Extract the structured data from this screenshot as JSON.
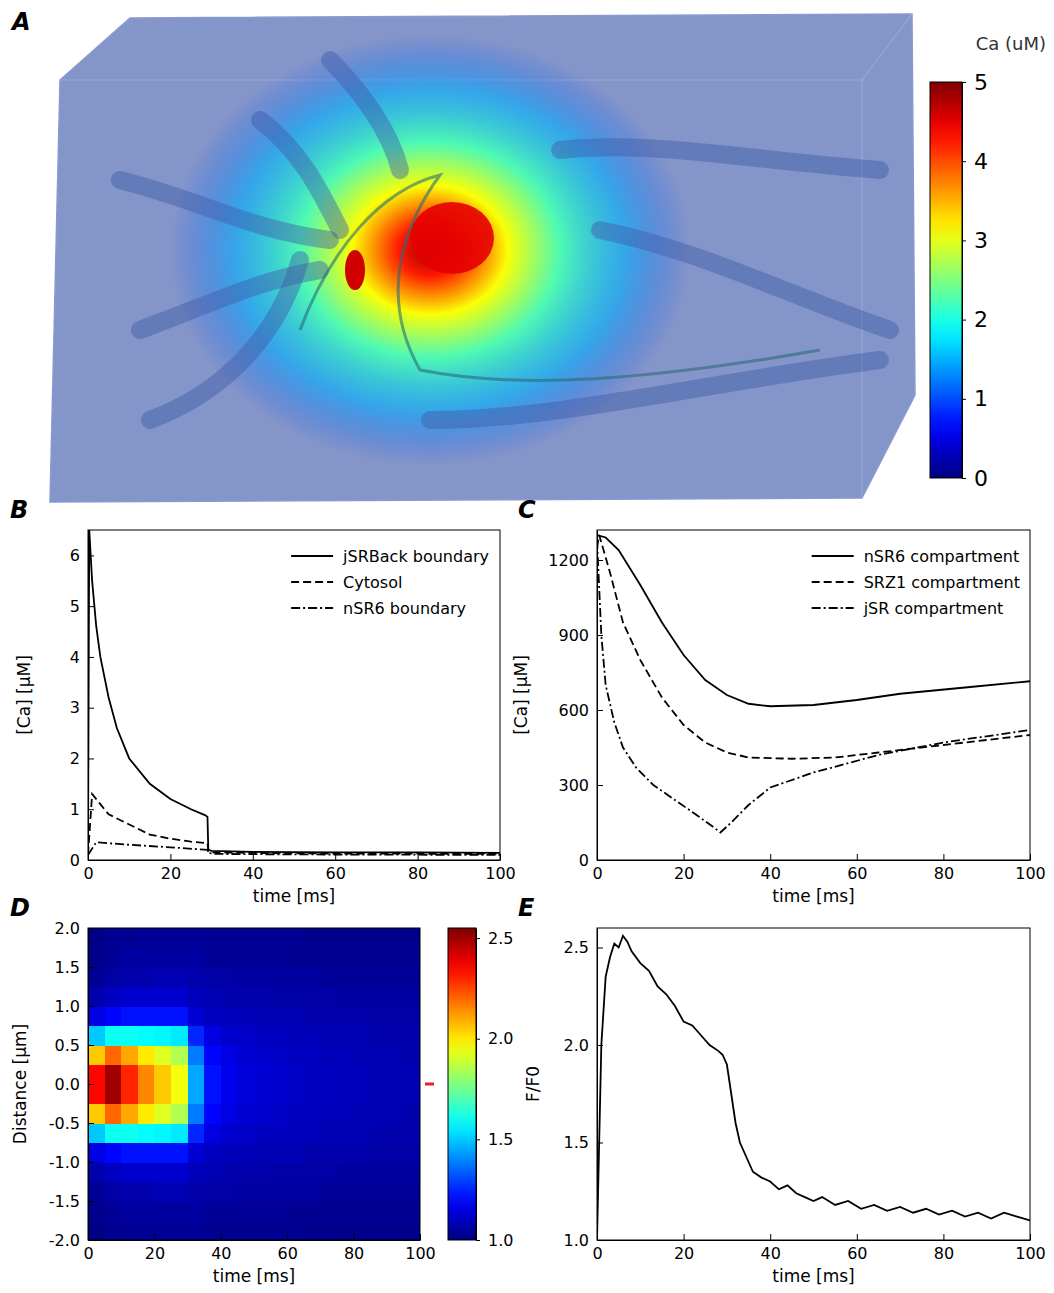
{
  "chart_data": [
    {
      "panel": "A",
      "type": "volume",
      "colorbar": {
        "title": "Ca (uM)",
        "range": [
          0,
          5
        ],
        "ticks": [
          0,
          1,
          2,
          3,
          4,
          5
        ]
      }
    },
    {
      "panel": "B",
      "type": "line",
      "xlabel": "time [ms]",
      "ylabel": "[Ca] [μM]",
      "xlim": [
        0,
        100
      ],
      "xticks": [
        0,
        20,
        40,
        60,
        80,
        100
      ],
      "ylim": [
        0,
        6.5
      ],
      "yticks": [
        0,
        1,
        2,
        3,
        4,
        5,
        6
      ],
      "legend": "top-right",
      "series": [
        {
          "name": "jSRBack boundary",
          "color": "#000000",
          "line_style": "solid",
          "x": [
            0,
            0.3,
            1,
            2,
            3,
            5,
            7,
            10,
            15,
            20,
            25,
            28.5,
            29,
            29.2,
            30,
            40,
            60,
            80,
            100
          ],
          "values": [
            0.1,
            6.5,
            5.5,
            4.6,
            4.0,
            3.2,
            2.6,
            2.0,
            1.5,
            1.2,
            1.0,
            0.88,
            0.85,
            0.2,
            0.18,
            0.16,
            0.15,
            0.15,
            0.14
          ]
        },
        {
          "name": "Cytosol",
          "color": "#000000",
          "line_style": "dashed",
          "x": [
            0,
            1,
            3,
            5,
            10,
            15,
            20,
            25,
            29,
            29.2,
            30,
            50,
            100
          ],
          "values": [
            0.1,
            1.3,
            1.1,
            0.9,
            0.7,
            0.5,
            0.42,
            0.36,
            0.33,
            0.17,
            0.15,
            0.13,
            0.12
          ]
        },
        {
          "name": "nSR6 boundary",
          "color": "#000000",
          "line_style": "dashdot",
          "x": [
            0,
            2,
            5,
            10,
            20,
            29,
            29.2,
            31,
            50,
            100
          ],
          "values": [
            0.1,
            0.35,
            0.33,
            0.3,
            0.25,
            0.2,
            0.14,
            0.12,
            0.11,
            0.1
          ]
        }
      ]
    },
    {
      "panel": "C",
      "type": "line",
      "xlabel": "time [ms]",
      "ylabel": "[Ca] [μM]",
      "xlim": [
        0,
        100
      ],
      "xticks": [
        0,
        20,
        40,
        60,
        80,
        100
      ],
      "ylim": [
        0,
        1320
      ],
      "yticks": [
        0,
        300,
        600,
        900,
        1200
      ],
      "legend": "top-right",
      "series": [
        {
          "name": "nSR6 compartment",
          "color": "#000000",
          "line_style": "solid",
          "x": [
            0,
            2,
            5,
            10,
            15,
            20,
            25,
            30,
            35,
            40,
            50,
            60,
            70,
            85,
            100
          ],
          "values": [
            1300,
            1290,
            1240,
            1100,
            950,
            820,
            720,
            660,
            625,
            615,
            620,
            640,
            665,
            690,
            715
          ]
        },
        {
          "name": "SRZ1 compartment",
          "color": "#000000",
          "line_style": "dashed",
          "x": [
            0,
            0.5,
            3,
            6,
            10,
            15,
            20,
            25,
            30,
            35,
            45,
            55,
            65,
            80,
            100
          ],
          "values": [
            1250,
            1300,
            1150,
            950,
            800,
            650,
            540,
            470,
            430,
            410,
            405,
            410,
            430,
            460,
            500
          ]
        },
        {
          "name": "jSR compartment",
          "color": "#000000",
          "line_style": "dashdot",
          "x": [
            0,
            1,
            2,
            4,
            6,
            9,
            13,
            18,
            23,
            27,
            28.5,
            31,
            35,
            40,
            50,
            65,
            80,
            100
          ],
          "values": [
            1280,
            900,
            700,
            550,
            450,
            370,
            300,
            240,
            180,
            130,
            110,
            150,
            220,
            290,
            350,
            420,
            470,
            520
          ]
        }
      ]
    },
    {
      "panel": "D",
      "type": "heatmap",
      "xlabel": "time [ms]",
      "ylabel": "Distance [μm]",
      "xlim": [
        0,
        100
      ],
      "xticks": [
        0,
        20,
        40,
        60,
        80,
        100
      ],
      "ylim": [
        -2,
        2
      ],
      "yticks": [
        {
          "value": -2,
          "label": "-2.0"
        },
        {
          "value": -1.5,
          "label": "-1.5"
        },
        {
          "value": -1,
          "label": "-1.0"
        },
        {
          "value": -0.5,
          "label": "-0.5"
        },
        {
          "value": 0,
          "label": "0.0"
        },
        {
          "value": 0.5,
          "label": "0.5"
        },
        {
          "value": 1,
          "label": "1.0"
        },
        {
          "value": 1.5,
          "label": "1.5"
        },
        {
          "value": 2,
          "label": "2.0"
        }
      ],
      "x_bins": [
        0,
        5,
        10,
        15,
        20,
        25,
        30,
        35,
        40,
        45,
        50,
        55,
        60,
        65,
        70,
        75,
        80,
        85,
        90,
        95,
        100
      ],
      "y_bins": [
        -2,
        -1.75,
        -1.5,
        -1.25,
        -1,
        -0.75,
        -0.5,
        -0.25,
        0,
        0.25,
        0.5,
        0.75,
        1,
        1.25,
        1.5,
        1.75,
        2
      ],
      "cells": [
        [
          1.01,
          1.03,
          1.03,
          1.04,
          1.04,
          1.04,
          1.04,
          1.03,
          1.03,
          1.03,
          1.03,
          1.03,
          1.03,
          1.02,
          1.02,
          1.02,
          1.02,
          1.02,
          1.02,
          1.02
        ],
        [
          1.02,
          1.04,
          1.05,
          1.05,
          1.05,
          1.05,
          1.05,
          1.04,
          1.04,
          1.04,
          1.04,
          1.04,
          1.03,
          1.03,
          1.03,
          1.03,
          1.03,
          1.03,
          1.03,
          1.03
        ],
        [
          1.04,
          1.06,
          1.07,
          1.07,
          1.08,
          1.08,
          1.07,
          1.06,
          1.06,
          1.05,
          1.05,
          1.05,
          1.05,
          1.05,
          1.04,
          1.04,
          1.04,
          1.04,
          1.04,
          1.04
        ],
        [
          1.07,
          1.1,
          1.12,
          1.12,
          1.12,
          1.12,
          1.09,
          1.08,
          1.07,
          1.07,
          1.07,
          1.06,
          1.06,
          1.06,
          1.06,
          1.05,
          1.05,
          1.05,
          1.05,
          1.05
        ],
        [
          1.15,
          1.2,
          1.22,
          1.22,
          1.22,
          1.22,
          1.13,
          1.1,
          1.09,
          1.09,
          1.08,
          1.08,
          1.08,
          1.07,
          1.07,
          1.07,
          1.07,
          1.06,
          1.06,
          1.06
        ],
        [
          1.5,
          1.6,
          1.6,
          1.58,
          1.57,
          1.55,
          1.25,
          1.15,
          1.12,
          1.11,
          1.1,
          1.1,
          1.09,
          1.09,
          1.08,
          1.08,
          1.08,
          1.07,
          1.07,
          1.07
        ],
        [
          2.05,
          2.2,
          2.1,
          2.0,
          1.92,
          1.85,
          1.38,
          1.2,
          1.15,
          1.13,
          1.12,
          1.11,
          1.1,
          1.1,
          1.09,
          1.09,
          1.08,
          1.08,
          1.08,
          1.07
        ],
        [
          2.35,
          2.5,
          2.3,
          2.15,
          2.05,
          1.95,
          1.45,
          1.22,
          1.17,
          1.14,
          1.13,
          1.12,
          1.11,
          1.1,
          1.1,
          1.09,
          1.09,
          1.08,
          1.08,
          1.08
        ],
        [
          2.35,
          2.5,
          2.3,
          2.15,
          2.05,
          1.95,
          1.45,
          1.22,
          1.17,
          1.14,
          1.13,
          1.12,
          1.11,
          1.1,
          1.1,
          1.09,
          1.09,
          1.08,
          1.08,
          1.08
        ],
        [
          2.05,
          2.2,
          2.1,
          2.0,
          1.92,
          1.85,
          1.38,
          1.2,
          1.15,
          1.13,
          1.12,
          1.11,
          1.1,
          1.1,
          1.09,
          1.09,
          1.08,
          1.08,
          1.08,
          1.07
        ],
        [
          1.5,
          1.6,
          1.6,
          1.58,
          1.57,
          1.55,
          1.25,
          1.15,
          1.12,
          1.11,
          1.1,
          1.1,
          1.09,
          1.09,
          1.08,
          1.08,
          1.08,
          1.07,
          1.07,
          1.07
        ],
        [
          1.15,
          1.2,
          1.22,
          1.22,
          1.22,
          1.22,
          1.13,
          1.1,
          1.09,
          1.09,
          1.08,
          1.08,
          1.08,
          1.07,
          1.07,
          1.07,
          1.07,
          1.06,
          1.06,
          1.06
        ],
        [
          1.07,
          1.1,
          1.12,
          1.12,
          1.12,
          1.12,
          1.09,
          1.08,
          1.07,
          1.07,
          1.07,
          1.06,
          1.06,
          1.06,
          1.06,
          1.05,
          1.05,
          1.05,
          1.05,
          1.05
        ],
        [
          1.04,
          1.06,
          1.07,
          1.07,
          1.08,
          1.08,
          1.07,
          1.06,
          1.06,
          1.05,
          1.05,
          1.05,
          1.05,
          1.05,
          1.04,
          1.04,
          1.04,
          1.04,
          1.04,
          1.04
        ],
        [
          1.02,
          1.04,
          1.05,
          1.05,
          1.05,
          1.05,
          1.05,
          1.04,
          1.04,
          1.04,
          1.04,
          1.04,
          1.03,
          1.03,
          1.03,
          1.03,
          1.03,
          1.03,
          1.03,
          1.03
        ],
        [
          1.01,
          1.03,
          1.03,
          1.04,
          1.04,
          1.04,
          1.04,
          1.03,
          1.03,
          1.03,
          1.03,
          1.03,
          1.03,
          1.02,
          1.02,
          1.02,
          1.02,
          1.02,
          1.02,
          1.02
        ]
      ],
      "colorbar": {
        "range": [
          1,
          2.55
        ],
        "ticks": [
          {
            "value": 1,
            "label": "1.0"
          },
          {
            "value": 1.5,
            "label": "1.5"
          },
          {
            "value": 2,
            "label": "2.0"
          },
          {
            "value": 2.5,
            "label": "2.5"
          }
        ]
      },
      "line_position": 0
    },
    {
      "panel": "E",
      "type": "line",
      "xlabel": "time [ms]",
      "ylabel": "F/F0",
      "xlim": [
        0,
        100
      ],
      "xticks": [
        0,
        20,
        40,
        60,
        80,
        100
      ],
      "ylim": [
        1,
        2.6
      ],
      "yticks": [
        {
          "value": 1,
          "label": "1.0"
        },
        {
          "value": 1.5,
          "label": "1.5"
        },
        {
          "value": 2,
          "label": "2.0"
        },
        {
          "value": 2.5,
          "label": "2.5"
        }
      ],
      "series": [
        {
          "color": "#000000",
          "line_style": "solid",
          "x": [
            0,
            1,
            2,
            3,
            4,
            5,
            6,
            7,
            8,
            10,
            12,
            14,
            16,
            18,
            20,
            22,
            24,
            26,
            28,
            29,
            30,
            31,
            32,
            33,
            34,
            36,
            38,
            40,
            42,
            44,
            46,
            48,
            50,
            52,
            55,
            58,
            61,
            64,
            67,
            70,
            73,
            76,
            79,
            82,
            85,
            88,
            91,
            94,
            97,
            100
          ],
          "values": [
            1.0,
            2.0,
            2.35,
            2.45,
            2.52,
            2.5,
            2.56,
            2.53,
            2.48,
            2.42,
            2.38,
            2.3,
            2.26,
            2.2,
            2.12,
            2.1,
            2.05,
            2.0,
            1.97,
            1.95,
            1.9,
            1.75,
            1.6,
            1.5,
            1.45,
            1.35,
            1.32,
            1.3,
            1.26,
            1.28,
            1.24,
            1.22,
            1.2,
            1.22,
            1.18,
            1.2,
            1.16,
            1.18,
            1.15,
            1.17,
            1.14,
            1.16,
            1.13,
            1.15,
            1.12,
            1.14,
            1.11,
            1.14,
            1.12,
            1.1
          ]
        }
      ]
    }
  ]
}
